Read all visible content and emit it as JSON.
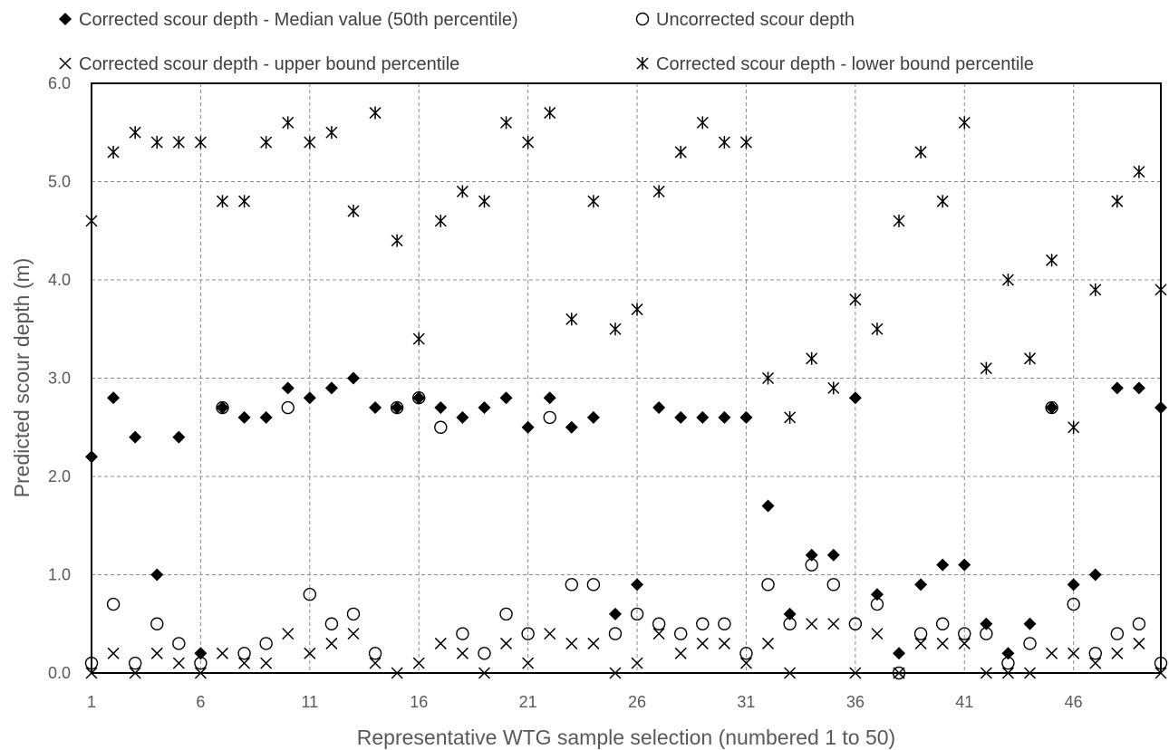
{
  "chart_data": {
    "type": "scatter",
    "xlabel": "Representative WTG sample selection (numbered 1 to 50)",
    "ylabel": "Predicted scour depth (m)",
    "xlim": [
      1,
      50
    ],
    "ylim": [
      0,
      6
    ],
    "x_ticks": [
      "1",
      "6",
      "11",
      "16",
      "21",
      "26",
      "31",
      "36",
      "41",
      "46"
    ],
    "y_ticks": [
      "0.0",
      "1.0",
      "2.0",
      "3.0",
      "4.0",
      "5.0",
      "6.0"
    ],
    "grid": "dashed",
    "legend_position": "top",
    "colors": {
      "markers": "#000000",
      "grid": "#8c8c8c",
      "axis_text": "#595959"
    },
    "series": [
      {
        "name": "Corrected scour depth - Median value (50th percentile)",
        "marker": "diamond",
        "x": [
          1,
          2,
          3,
          4,
          5,
          6,
          7,
          8,
          9,
          10,
          11,
          12,
          13,
          14,
          15,
          16,
          17,
          18,
          19,
          20,
          21,
          22,
          23,
          24,
          25,
          26,
          27,
          28,
          29,
          30,
          31,
          32,
          33,
          34,
          35,
          36,
          37,
          38,
          39,
          40,
          41,
          42,
          43,
          44,
          45,
          46,
          47,
          48,
          49,
          50
        ],
        "values": [
          2.2,
          2.8,
          2.4,
          1.0,
          2.4,
          0.2,
          2.7,
          2.6,
          2.6,
          2.9,
          2.8,
          2.9,
          3.0,
          2.7,
          2.7,
          2.8,
          2.7,
          2.6,
          2.7,
          2.8,
          2.5,
          2.8,
          2.5,
          2.6,
          0.6,
          0.9,
          2.7,
          2.6,
          2.6,
          2.6,
          2.6,
          1.7,
          0.6,
          1.2,
          1.2,
          2.8,
          0.8,
          0.2,
          0.9,
          1.1,
          1.1,
          0.5,
          0.2,
          0.5,
          2.7,
          0.9,
          1.0,
          2.9,
          2.9,
          2.7
        ]
      },
      {
        "name": "Uncorrected scour depth",
        "marker": "circle",
        "x": [
          1,
          2,
          3,
          4,
          5,
          6,
          7,
          8,
          9,
          10,
          11,
          12,
          13,
          14,
          15,
          16,
          17,
          18,
          19,
          20,
          21,
          22,
          23,
          24,
          25,
          26,
          27,
          28,
          29,
          30,
          31,
          32,
          33,
          34,
          35,
          36,
          37,
          38,
          39,
          40,
          41,
          42,
          43,
          44,
          45,
          46,
          47,
          48,
          49,
          50
        ],
        "values": [
          0.1,
          0.7,
          0.1,
          0.5,
          0.3,
          0.1,
          2.7,
          0.2,
          0.3,
          2.7,
          0.8,
          0.5,
          0.6,
          0.2,
          2.7,
          2.8,
          2.5,
          0.4,
          0.2,
          0.6,
          0.4,
          2.6,
          0.9,
          0.9,
          0.4,
          0.6,
          0.5,
          0.4,
          0.5,
          0.5,
          0.2,
          0.9,
          0.5,
          1.1,
          0.9,
          0.5,
          0.7,
          0.0,
          0.4,
          0.5,
          0.4,
          0.4,
          0.1,
          0.3,
          2.7,
          0.7,
          0.2,
          0.4,
          0.5,
          0.1
        ]
      },
      {
        "name": "Corrected scour depth - upper bound percentile",
        "marker": "x",
        "x": [
          1,
          2,
          3,
          4,
          5,
          6,
          7,
          8,
          9,
          10,
          11,
          12,
          13,
          14,
          15,
          16,
          17,
          18,
          19,
          20,
          21,
          22,
          23,
          24,
          25,
          26,
          27,
          28,
          29,
          30,
          31,
          32,
          33,
          34,
          35,
          36,
          37,
          38,
          39,
          40,
          41,
          42,
          43,
          44,
          45,
          46,
          47,
          48,
          49,
          50
        ],
        "values": [
          0.0,
          0.2,
          0.0,
          0.2,
          0.1,
          0.0,
          0.2,
          0.1,
          0.1,
          0.4,
          0.2,
          0.3,
          0.4,
          0.1,
          0.0,
          0.1,
          0.3,
          0.2,
          0.0,
          0.3,
          0.1,
          0.4,
          0.3,
          0.3,
          0.0,
          0.1,
          0.4,
          0.2,
          0.3,
          0.3,
          0.1,
          0.3,
          0.0,
          0.5,
          0.5,
          0.0,
          0.4,
          0.0,
          0.3,
          0.3,
          0.3,
          0.0,
          0.0,
          0.0,
          0.2,
          0.2,
          0.1,
          0.2,
          0.3,
          0.0
        ]
      },
      {
        "name": "Corrected scour depth - lower bound percentile",
        "marker": "asterisk",
        "x": [
          1,
          2,
          3,
          4,
          5,
          6,
          7,
          8,
          9,
          10,
          11,
          12,
          13,
          14,
          15,
          16,
          17,
          18,
          19,
          20,
          21,
          22,
          23,
          24,
          25,
          26,
          27,
          28,
          29,
          30,
          31,
          32,
          33,
          34,
          35,
          36,
          37,
          38,
          39,
          40,
          41,
          42,
          43,
          44,
          45,
          46,
          47,
          48,
          49,
          50
        ],
        "values": [
          4.6,
          5.3,
          5.5,
          5.4,
          5.4,
          5.4,
          4.8,
          4.8,
          5.4,
          5.6,
          5.4,
          5.5,
          4.7,
          5.7,
          4.4,
          3.4,
          4.6,
          4.9,
          4.8,
          5.6,
          5.4,
          5.7,
          3.6,
          4.8,
          3.5,
          3.7,
          4.9,
          5.3,
          5.6,
          5.4,
          5.4,
          3.0,
          2.6,
          3.2,
          2.9,
          3.8,
          3.5,
          4.6,
          5.3,
          4.8,
          5.6,
          3.1,
          4.0,
          3.2,
          4.2,
          2.5,
          3.9,
          4.8,
          5.1,
          3.9
        ]
      }
    ]
  }
}
